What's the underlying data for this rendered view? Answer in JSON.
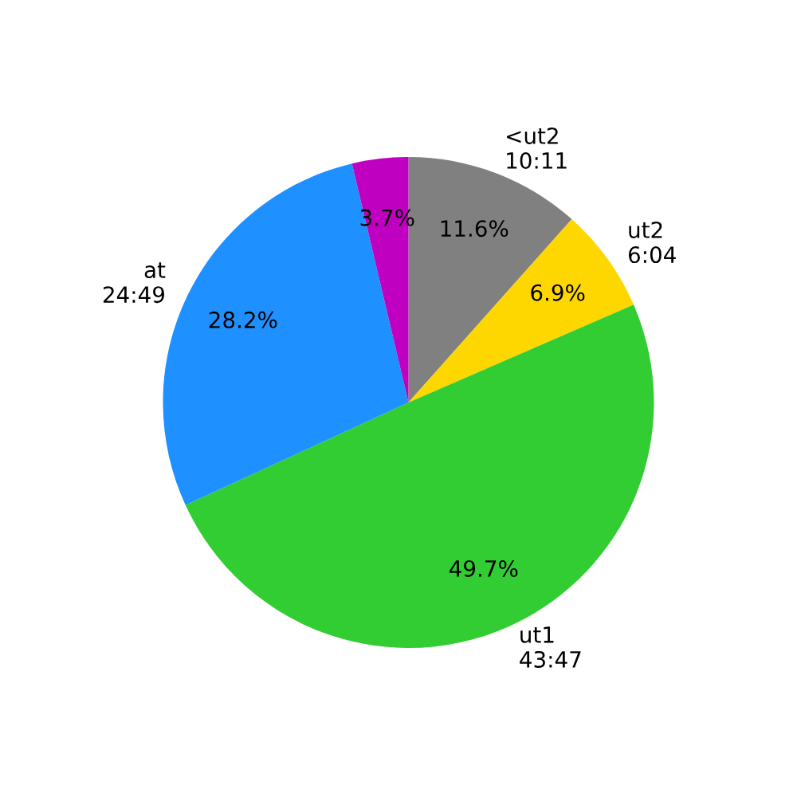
{
  "chart_data": {
    "type": "pie",
    "categories": [
      "<ut2\n10:11",
      "ut2\n6:04",
      "ut1\n43:47",
      "at\n24:49",
      null
    ],
    "values": [
      11.6,
      6.9,
      49.7,
      28.2,
      3.7
    ],
    "colors": [
      "#808080",
      "#ffd700",
      "#32cd32",
      "#1e90ff",
      "#c000c0"
    ],
    "value_labels": [
      "11.6%",
      "6.9%",
      "49.7%",
      "28.2%",
      "3.7%"
    ]
  }
}
